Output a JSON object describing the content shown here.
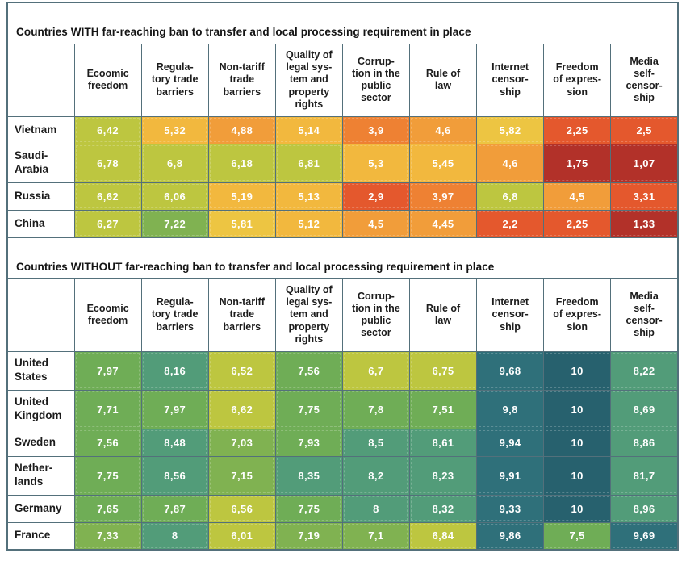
{
  "columns_display": [
    "Ecoomic\nfreedom",
    "Regula-\ntory trade\nbarriers",
    "Non-tariff\ntrade\nbarriers",
    "Quality of\nlegal sys-\ntem and\nproperty\nrights",
    "Corrup-\ntion in the\npublic\nsector",
    "Rule of\nlaw",
    "Internet\ncensor-\nship",
    "Freedom\nof expres-\nsion",
    "Media\nself-\ncensor-\nship"
  ],
  "colors": {
    "border": "#53707b",
    "header_bg": "#ffffff",
    "title_text": "#141414",
    "value_text": "#ffffff",
    "scale": [
      {
        "max": 1.99,
        "color": "#b23129"
      },
      {
        "max": 3.49,
        "color": "#e4582d"
      },
      {
        "max": 4.24,
        "color": "#ee8133"
      },
      {
        "max": 4.99,
        "color": "#f19d3a"
      },
      {
        "max": 5.74,
        "color": "#f2b83e"
      },
      {
        "max": 5.99,
        "color": "#edc542"
      },
      {
        "max": 6.99,
        "color": "#bdc640"
      },
      {
        "max": 7.49,
        "color": "#80b251"
      },
      {
        "max": 7.99,
        "color": "#6fad56"
      },
      {
        "max": 8.99,
        "color": "#529c79"
      },
      {
        "max": 9.99,
        "color": "#2f707a"
      },
      {
        "max": 99,
        "color": "#27616e"
      }
    ]
  },
  "chart_data": {
    "type": "heatmap",
    "value_range": [
      0,
      10
    ],
    "decimal_separator": ",",
    "legend": "none",
    "columns": [
      "Ecoomic freedom",
      "Regulatory trade barriers",
      "Non-tariff trade barriers",
      "Quality of legal system and property rights",
      "Corruption in the public sector",
      "Rule of law",
      "Internet censorship",
      "Freedom of expression",
      "Media self-censorship"
    ],
    "groups": [
      {
        "title": "Countries WITH far-reaching ban to transfer and local processing requirement in place",
        "rows": [
          {
            "country": "Vietnam",
            "display": "Vietnam",
            "values": [
              6.42,
              5.32,
              4.88,
              5.14,
              3.9,
              4.6,
              5.82,
              2.25,
              2.5
            ]
          },
          {
            "country": "Saudi-Arabia",
            "display": "Saudi-\nArabia",
            "values": [
              6.78,
              6.8,
              6.18,
              6.81,
              5.3,
              5.45,
              4.6,
              1.75,
              1.07
            ]
          },
          {
            "country": "Russia",
            "display": "Russia",
            "values": [
              6.62,
              6.06,
              5.19,
              5.13,
              2.9,
              3.97,
              6.8,
              4.5,
              3.31
            ]
          },
          {
            "country": "China",
            "display": "China",
            "values": [
              6.27,
              7.22,
              5.81,
              5.12,
              4.5,
              4.45,
              2.2,
              2.25,
              1.33
            ]
          }
        ]
      },
      {
        "title": "Countries WITHOUT far-reaching ban to transfer and local processing requirement in place",
        "rows": [
          {
            "country": "United States",
            "display": "United\nStates",
            "values": [
              7.97,
              8.16,
              6.52,
              7.56,
              6.7,
              6.75,
              9.68,
              10,
              8.22
            ]
          },
          {
            "country": "United Kingdom",
            "display": "United\nKingdom",
            "values": [
              7.71,
              7.97,
              6.62,
              7.75,
              7.8,
              7.51,
              9.8,
              10,
              8.69
            ]
          },
          {
            "country": "Sweden",
            "display": "Sweden",
            "values": [
              7.56,
              8.48,
              7.03,
              7.93,
              8.5,
              8.61,
              9.94,
              10,
              8.86
            ]
          },
          {
            "country": "Netherlands",
            "display": "Nether-\nlands",
            "values": [
              7.75,
              8.56,
              7.15,
              8.35,
              8.2,
              8.23,
              9.91,
              10,
              81.7
            ]
          },
          {
            "country": "Germany",
            "display": "Germany",
            "values": [
              7.65,
              7.87,
              6.56,
              7.75,
              8,
              8.32,
              9.33,
              10,
              8.96
            ]
          },
          {
            "country": "France",
            "display": "France",
            "values": [
              7.33,
              8,
              6.01,
              7.19,
              7.1,
              6.84,
              9.86,
              7.5,
              9.69
            ]
          }
        ]
      }
    ]
  }
}
